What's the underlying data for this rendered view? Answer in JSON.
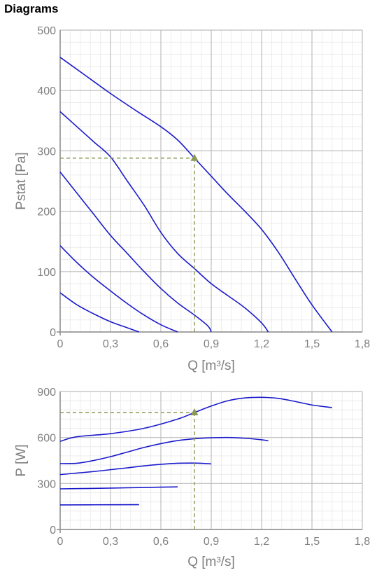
{
  "header": {
    "title": "Diagrams"
  },
  "colors": {
    "curve": "#1a1acc",
    "operating_point": "#8a9a55",
    "grid_major": "#bdbdbd",
    "grid_minor": "#ececec",
    "axis_text": "#7f7f7f"
  },
  "chart_data": [
    {
      "type": "line",
      "title": "",
      "xlabel": "Q [m³/s]",
      "ylabel": "Pstat [Pa]",
      "xlim": [
        0,
        1.8
      ],
      "ylim": [
        0,
        500
      ],
      "x_ticks": [
        "0",
        "0,3",
        "0,6",
        "0,9",
        "1,2",
        "1,5",
        "1,8"
      ],
      "y_ticks": [
        "0",
        "100",
        "200",
        "300",
        "400",
        "500"
      ],
      "grid": true,
      "series": [
        {
          "points": [
            [
              0,
              455
            ],
            [
              0.15,
              425
            ],
            [
              0.3,
              395
            ],
            [
              0.45,
              367
            ],
            [
              0.6,
              340
            ],
            [
              0.7,
              318
            ],
            [
              0.8,
              288
            ],
            [
              0.9,
              258
            ],
            [
              1.0,
              228
            ],
            [
              1.1,
              200
            ],
            [
              1.2,
              170
            ],
            [
              1.3,
              132
            ],
            [
              1.4,
              88
            ],
            [
              1.5,
              45
            ],
            [
              1.62,
              0
            ]
          ]
        },
        {
          "points": [
            [
              0,
              365
            ],
            [
              0.1,
              340
            ],
            [
              0.2,
              315
            ],
            [
              0.3,
              290
            ],
            [
              0.4,
              250
            ],
            [
              0.5,
              210
            ],
            [
              0.6,
              165
            ],
            [
              0.7,
              130
            ],
            [
              0.8,
              105
            ],
            [
              0.9,
              80
            ],
            [
              1.0,
              60
            ],
            [
              1.1,
              40
            ],
            [
              1.2,
              15
            ],
            [
              1.24,
              0
            ]
          ]
        },
        {
          "points": [
            [
              0,
              265
            ],
            [
              0.1,
              230
            ],
            [
              0.2,
              195
            ],
            [
              0.3,
              160
            ],
            [
              0.4,
              130
            ],
            [
              0.5,
              100
            ],
            [
              0.6,
              72
            ],
            [
              0.7,
              48
            ],
            [
              0.8,
              28
            ],
            [
              0.88,
              10
            ],
            [
              0.9,
              0
            ]
          ]
        },
        {
          "points": [
            [
              0,
              143
            ],
            [
              0.1,
              115
            ],
            [
              0.2,
              90
            ],
            [
              0.3,
              68
            ],
            [
              0.4,
              47
            ],
            [
              0.5,
              28
            ],
            [
              0.6,
              12
            ],
            [
              0.7,
              0
            ]
          ]
        },
        {
          "points": [
            [
              0,
              65
            ],
            [
              0.1,
              45
            ],
            [
              0.2,
              30
            ],
            [
              0.3,
              17
            ],
            [
              0.4,
              7
            ],
            [
              0.47,
              0
            ]
          ]
        }
      ],
      "operating_point": {
        "x": 0.8,
        "y": 288
      }
    },
    {
      "type": "line",
      "title": "",
      "xlabel": "Q [m³/s]",
      "ylabel": "P [W]",
      "xlim": [
        0,
        1.8
      ],
      "ylim": [
        0,
        900
      ],
      "x_ticks": [
        "0",
        "0,3",
        "0,6",
        "0,9",
        "1,2",
        "1,5",
        "1,8"
      ],
      "y_ticks": [
        "0",
        "300",
        "600",
        "900"
      ],
      "grid": true,
      "series": [
        {
          "points": [
            [
              0,
              575
            ],
            [
              0.1,
              605
            ],
            [
              0.3,
              625
            ],
            [
              0.5,
              660
            ],
            [
              0.7,
              720
            ],
            [
              0.8,
              763
            ],
            [
              0.9,
              805
            ],
            [
              1.0,
              840
            ],
            [
              1.1,
              858
            ],
            [
              1.2,
              862
            ],
            [
              1.3,
              855
            ],
            [
              1.4,
              835
            ],
            [
              1.5,
              812
            ],
            [
              1.62,
              795
            ]
          ]
        },
        {
          "points": [
            [
              0,
              430
            ],
            [
              0.1,
              432
            ],
            [
              0.2,
              450
            ],
            [
              0.3,
              475
            ],
            [
              0.4,
              505
            ],
            [
              0.5,
              535
            ],
            [
              0.6,
              560
            ],
            [
              0.7,
              580
            ],
            [
              0.8,
              592
            ],
            [
              0.9,
              598
            ],
            [
              1.0,
              600
            ],
            [
              1.1,
              595
            ],
            [
              1.2,
              585
            ],
            [
              1.24,
              578
            ]
          ]
        },
        {
          "points": [
            [
              0,
              358
            ],
            [
              0.1,
              368
            ],
            [
              0.2,
              378
            ],
            [
              0.3,
              390
            ],
            [
              0.4,
              402
            ],
            [
              0.5,
              415
            ],
            [
              0.6,
              425
            ],
            [
              0.7,
              432
            ],
            [
              0.8,
              433
            ],
            [
              0.9,
              428
            ]
          ]
        },
        {
          "points": [
            [
              0,
              265
            ],
            [
              0.2,
              268
            ],
            [
              0.4,
              272
            ],
            [
              0.6,
              276
            ],
            [
              0.7,
              278
            ]
          ]
        },
        {
          "points": [
            [
              0,
              160
            ],
            [
              0.2,
              161
            ],
            [
              0.47,
              162
            ]
          ]
        }
      ],
      "operating_point": {
        "x": 0.8,
        "y": 763
      }
    }
  ]
}
